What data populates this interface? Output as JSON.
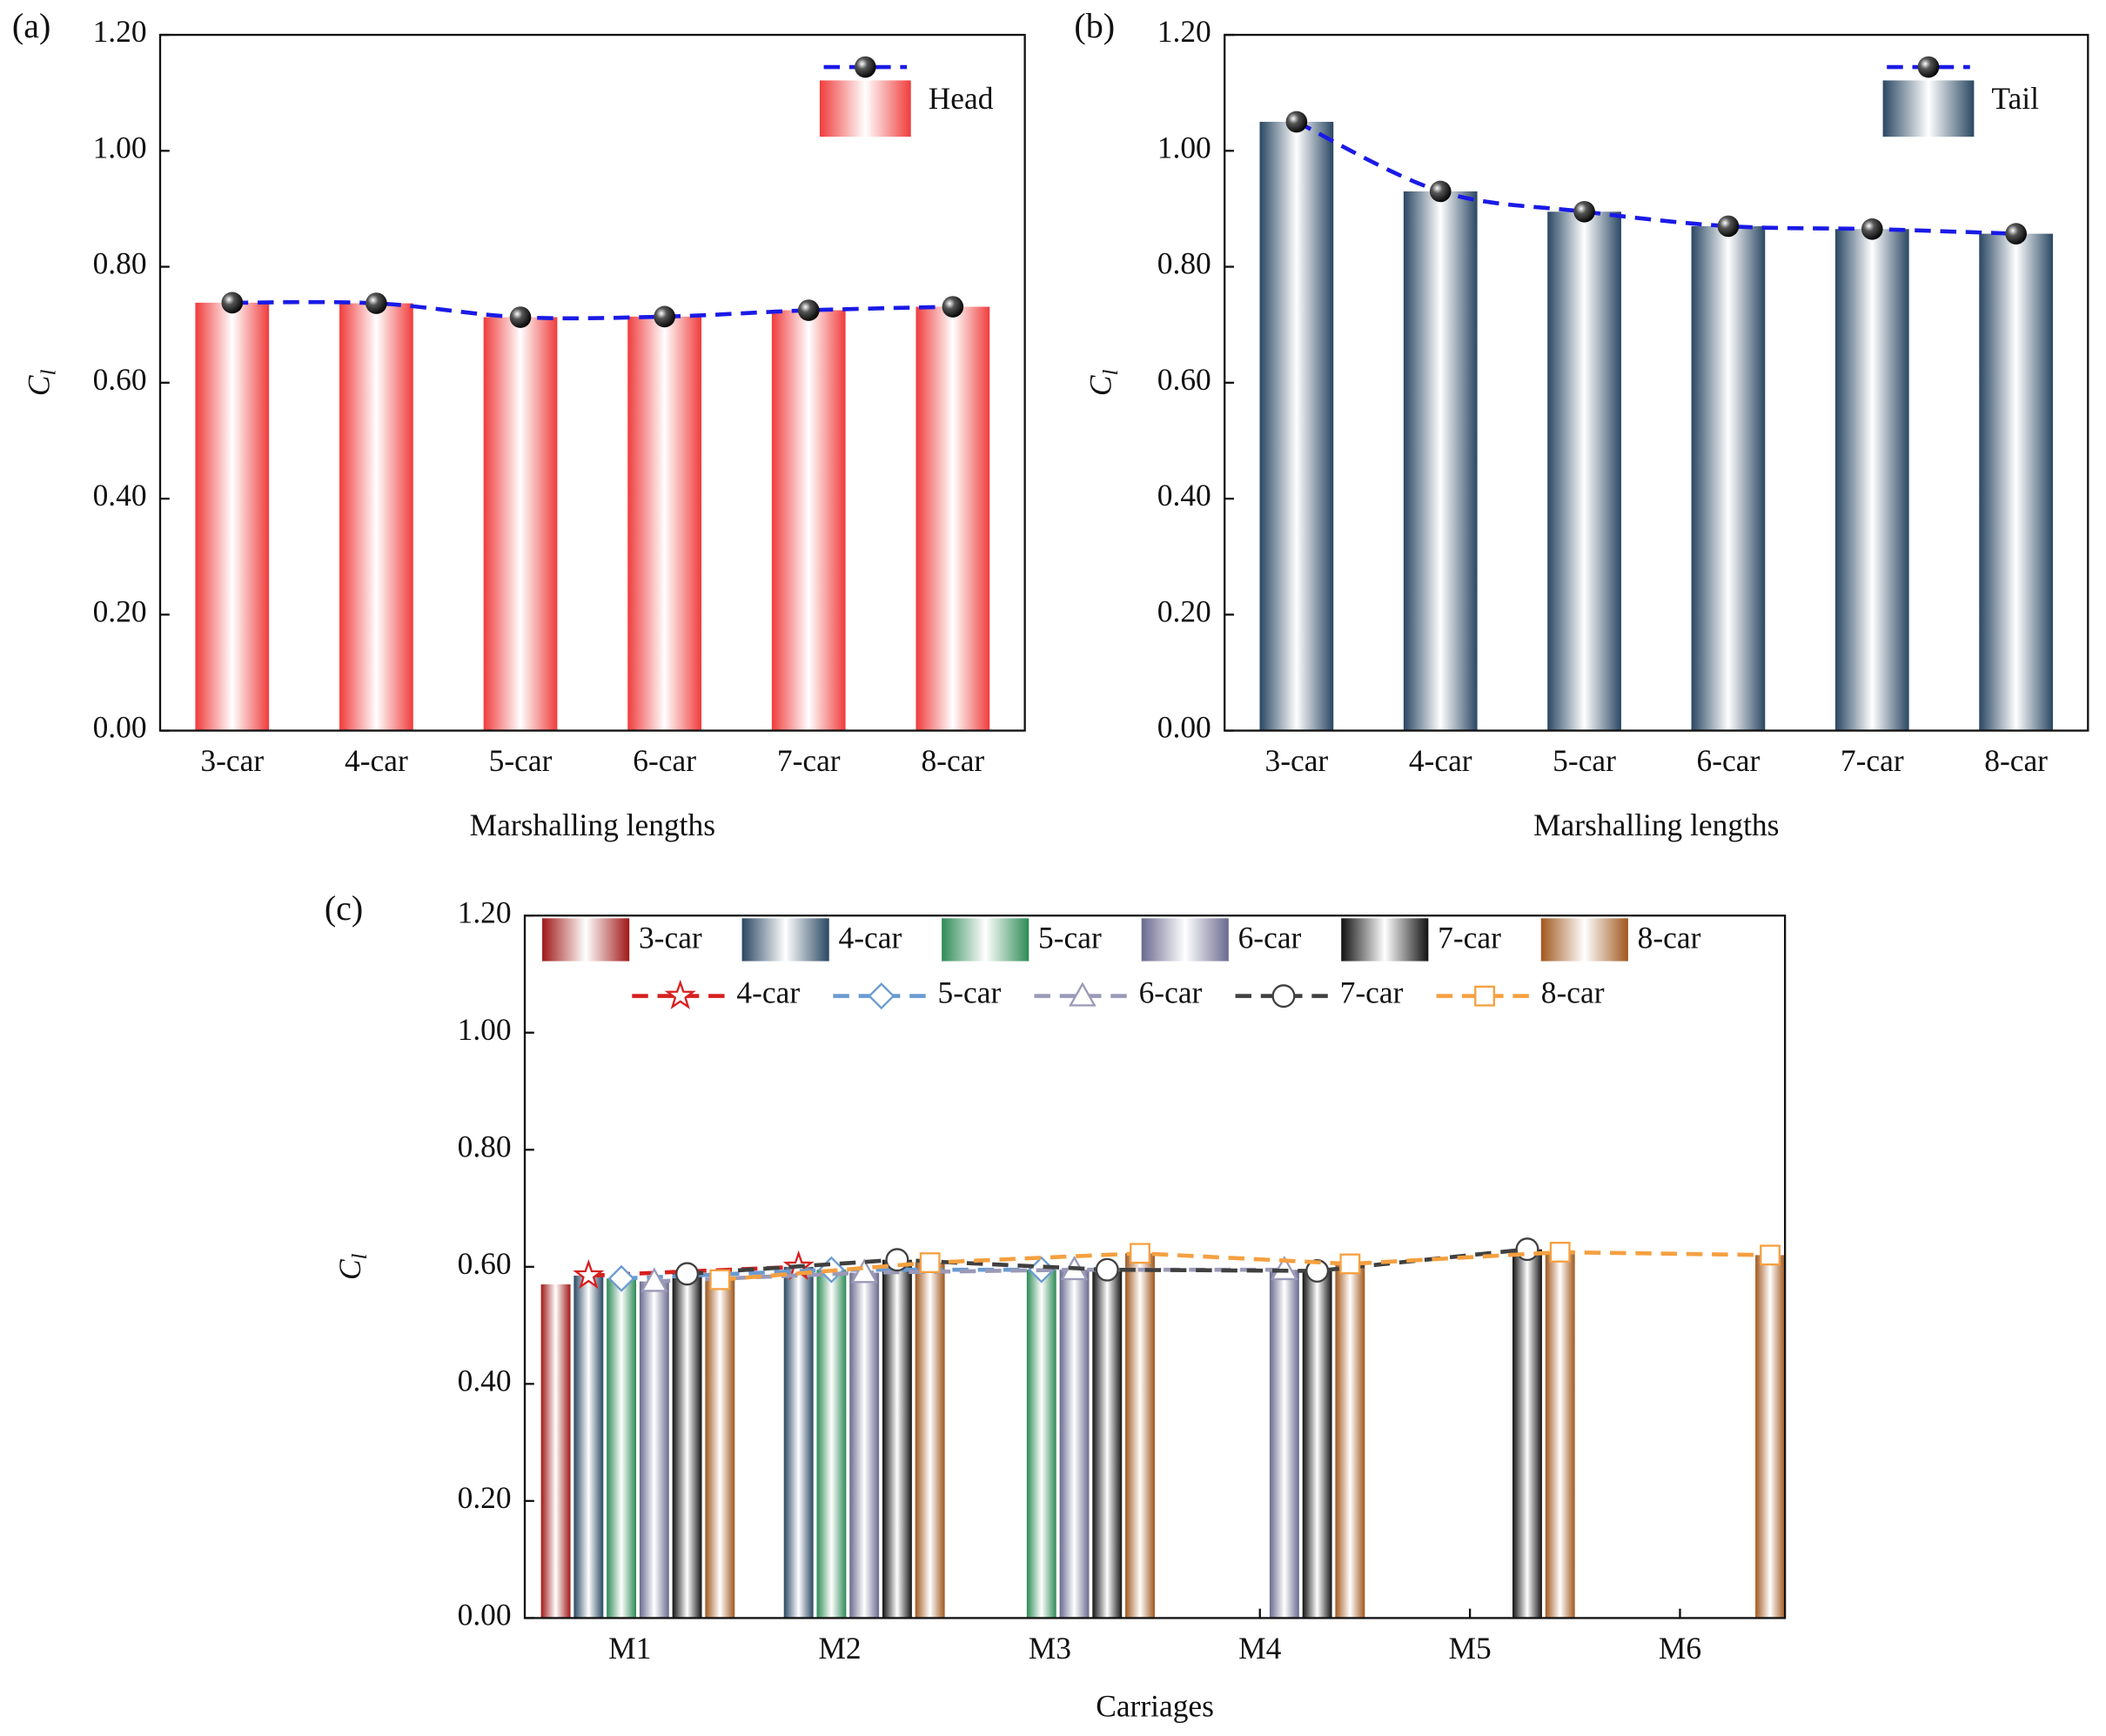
{
  "chart_data": [
    {
      "type": "bar",
      "panel": "(a)",
      "xlabel": "Marshalling lengths",
      "ylabel": "C",
      "ylabel_sub": "l",
      "categories": [
        "3-car",
        "4-car",
        "5-car",
        "6-car",
        "7-car",
        "8-car"
      ],
      "ylim": [
        0,
        1.2
      ],
      "yticks": [
        {
          "value": 0,
          "label": "0.00"
        },
        {
          "value": 0.2,
          "label": "0.20"
        },
        {
          "value": 0.4,
          "label": "0.40"
        },
        {
          "value": 0.6,
          "label": "0.60"
        },
        {
          "value": 0.8,
          "label": "0.80"
        },
        {
          "value": 1.0,
          "label": "1.00"
        },
        {
          "value": 1.2,
          "label": "1.20"
        }
      ],
      "series": [
        {
          "name": "Head",
          "type": "bar",
          "color": "#f03c3c",
          "values": [
            0.738,
            0.737,
            0.713,
            0.714,
            0.725,
            0.731
          ]
        },
        {
          "type": "line",
          "color": "#1a1ae6",
          "marker": "sphere",
          "values": [
            0.738,
            0.737,
            0.713,
            0.714,
            0.725,
            0.731
          ]
        }
      ]
    },
    {
      "type": "bar",
      "panel": "(b)",
      "xlabel": "Marshalling lengths",
      "ylabel": "C",
      "ylabel_sub": "l",
      "categories": [
        "3-car",
        "4-car",
        "5-car",
        "6-car",
        "7-car",
        "8-car"
      ],
      "ylim": [
        0,
        1.2
      ],
      "yticks": [
        {
          "value": 0,
          "label": "0.00"
        },
        {
          "value": 0.2,
          "label": "0.20"
        },
        {
          "value": 0.4,
          "label": "0.40"
        },
        {
          "value": 0.6,
          "label": "0.60"
        },
        {
          "value": 0.8,
          "label": "0.80"
        },
        {
          "value": 1.0,
          "label": "1.00"
        },
        {
          "value": 1.2,
          "label": "1.20"
        }
      ],
      "series": [
        {
          "name": "Tail",
          "type": "bar",
          "color": "#2a4763",
          "values": [
            1.05,
            0.93,
            0.895,
            0.87,
            0.865,
            0.857
          ]
        },
        {
          "type": "line",
          "color": "#1a1ae6",
          "marker": "sphere",
          "values": [
            1.05,
            0.93,
            0.895,
            0.87,
            0.865,
            0.857
          ]
        }
      ]
    },
    {
      "type": "bar",
      "panel": "(c)",
      "xlabel": "Carriages",
      "ylabel": "C",
      "ylabel_sub": "l",
      "categories": [
        "M1",
        "M2",
        "M3",
        "M4",
        "M5",
        "M6"
      ],
      "ylim": [
        0,
        1.2
      ],
      "yticks": [
        {
          "value": 0,
          "label": "0.00"
        },
        {
          "value": 0.2,
          "label": "0.20"
        },
        {
          "value": 0.4,
          "label": "0.40"
        },
        {
          "value": 0.6,
          "label": "0.60"
        },
        {
          "value": 0.8,
          "label": "0.80"
        },
        {
          "value": 1.0,
          "label": "1.00"
        },
        {
          "value": 1.2,
          "label": "1.20"
        }
      ],
      "series": [
        {
          "name": "3-car",
          "type": "bar",
          "slot": 0,
          "color": "#a01818",
          "values": [
            0.57,
            null,
            null,
            null,
            null,
            null
          ]
        },
        {
          "name": "4-car",
          "type": "bar",
          "slot": 1,
          "color": "#2a4763",
          "values": [
            0.585,
            0.6,
            null,
            null,
            null,
            null
          ]
        },
        {
          "name": "5-car",
          "type": "bar",
          "slot": 2,
          "color": "#2e8b57",
          "values": [
            0.58,
            0.595,
            0.595,
            null,
            null,
            null
          ]
        },
        {
          "name": "6-car",
          "type": "bar",
          "slot": 3,
          "color": "#6a6a90",
          "values": [
            0.575,
            0.59,
            0.595,
            0.595,
            null,
            null
          ]
        },
        {
          "name": "7-car",
          "type": "bar",
          "slot": 4,
          "color": "#111111",
          "values": [
            0.588,
            0.612,
            0.595,
            0.593,
            0.63,
            null
          ]
        },
        {
          "name": "8-car",
          "type": "bar",
          "slot": 5,
          "color": "#a0581e",
          "values": [
            0.578,
            0.607,
            0.623,
            0.605,
            0.625,
            0.62
          ]
        },
        {
          "name": "4-car",
          "type": "line",
          "slot": 1,
          "color": "#d62020",
          "marker": "star",
          "values": [
            0.585,
            0.6,
            null,
            null,
            null,
            null
          ]
        },
        {
          "name": "5-car",
          "type": "line",
          "slot": 2,
          "color": "#6a9bd1",
          "marker": "diamond",
          "values": [
            0.58,
            0.595,
            0.595,
            null,
            null,
            null
          ]
        },
        {
          "name": "6-car",
          "type": "line",
          "slot": 3,
          "color": "#9a9ab8",
          "marker": "triangle",
          "values": [
            0.575,
            0.59,
            0.595,
            0.595,
            null,
            null
          ]
        },
        {
          "name": "7-car",
          "type": "line",
          "slot": 4,
          "color": "#404040",
          "marker": "circle",
          "values": [
            0.588,
            0.612,
            0.595,
            0.593,
            0.63,
            null
          ]
        },
        {
          "name": "8-car",
          "type": "line",
          "slot": 5,
          "color": "#f5a040",
          "marker": "square",
          "values": [
            0.578,
            0.607,
            0.623,
            0.605,
            0.625,
            0.62
          ]
        }
      ]
    }
  ]
}
